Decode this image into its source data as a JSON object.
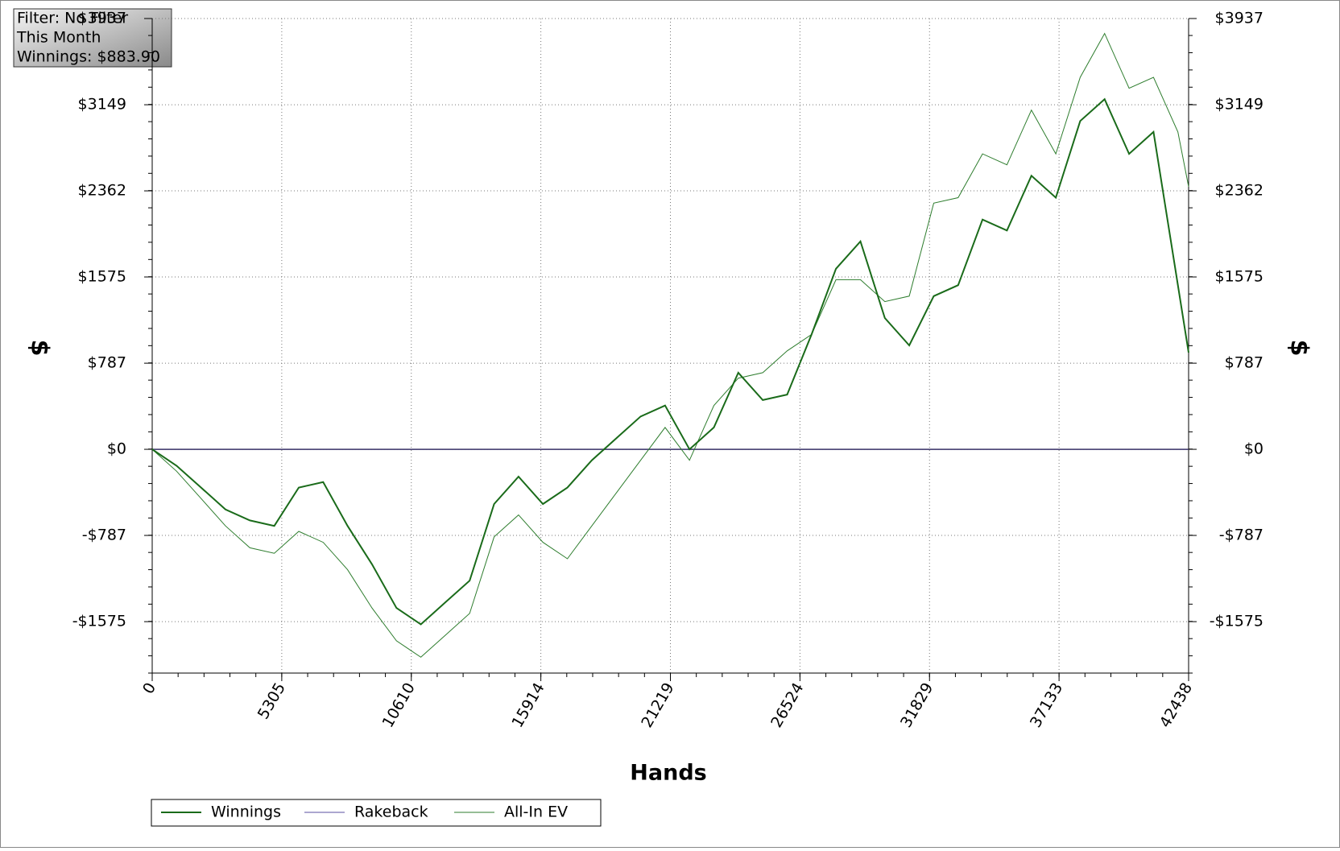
{
  "chart_data": {
    "type": "line",
    "info": [
      "Filter: No Filter",
      "This Month",
      "Winnings: $883.90"
    ],
    "xlabel": "Hands",
    "ylabel": "$",
    "x": [
      0,
      1000,
      2000,
      3000,
      4000,
      5000,
      6000,
      7000,
      8000,
      9000,
      10000,
      11000,
      12000,
      13000,
      14000,
      15000,
      16000,
      17000,
      18000,
      19000,
      20000,
      21000,
      22000,
      23000,
      24000,
      25000,
      26000,
      27000,
      28000,
      29000,
      30000,
      31000,
      32000,
      33000,
      34000,
      35000,
      36000,
      37000,
      38000,
      39000,
      40000,
      41000,
      42000,
      42438
    ],
    "series": [
      {
        "name": "Winnings",
        "color": "#1a6b1a",
        "width": 2,
        "values": [
          0,
          -150,
          -350,
          -550,
          -650,
          -700,
          -350,
          -300,
          -700,
          -1050,
          -1450,
          -1600,
          -1400,
          -1200,
          -500,
          -250,
          -500,
          -350,
          -100,
          100,
          300,
          400,
          0,
          200,
          700,
          450,
          500,
          1050,
          1650,
          1900,
          1200,
          950,
          1400,
          1500,
          2100,
          2000,
          2500,
          2300,
          3000,
          3200,
          2700,
          2900,
          1500,
          883.9
        ]
      },
      {
        "name": "Rakeback",
        "color": "#5a4fa0",
        "width": 1,
        "values": [
          0,
          0,
          0,
          0,
          0,
          0,
          0,
          0,
          0,
          0,
          0,
          0,
          0,
          0,
          0,
          0,
          0,
          0,
          0,
          0,
          0,
          0,
          0,
          0,
          0,
          0,
          0,
          0,
          0,
          0,
          0,
          0,
          0,
          0,
          0,
          0,
          0,
          0,
          0,
          0,
          0,
          0,
          0,
          0
        ]
      },
      {
        "name": "All-In EV",
        "color": "#2e7d2e",
        "width": 1,
        "values": [
          0,
          -200,
          -450,
          -700,
          -900,
          -950,
          -750,
          -850,
          -1100,
          -1450,
          -1750,
          -1900,
          -1700,
          -1500,
          -800,
          -600,
          -850,
          -1000,
          -700,
          -400,
          -100,
          200,
          -100,
          400,
          650,
          700,
          900,
          1050,
          1550,
          1550,
          1350,
          1400,
          2250,
          2300,
          2700,
          2600,
          3100,
          2700,
          3400,
          3800,
          3300,
          3400,
          2900,
          2400
        ]
      }
    ],
    "xlim": [
      0,
      42438
    ],
    "xticks": [
      0,
      5305,
      10610,
      15914,
      21219,
      26524,
      31829,
      37133,
      42438
    ],
    "ylim": [
      -2045,
      3937
    ],
    "yticks": [
      {
        "value": -1575,
        "label": "-$1575"
      },
      {
        "value": -787,
        "label": "-$787"
      },
      {
        "value": 0,
        "label": "$0"
      },
      {
        "value": 787,
        "label": "$787"
      },
      {
        "value": 1575,
        "label": "$1575"
      },
      {
        "value": 2362,
        "label": "$2362"
      },
      {
        "value": 3149,
        "label": "$3149"
      },
      {
        "value": 3937,
        "label": "$3937"
      }
    ],
    "grid": true
  }
}
